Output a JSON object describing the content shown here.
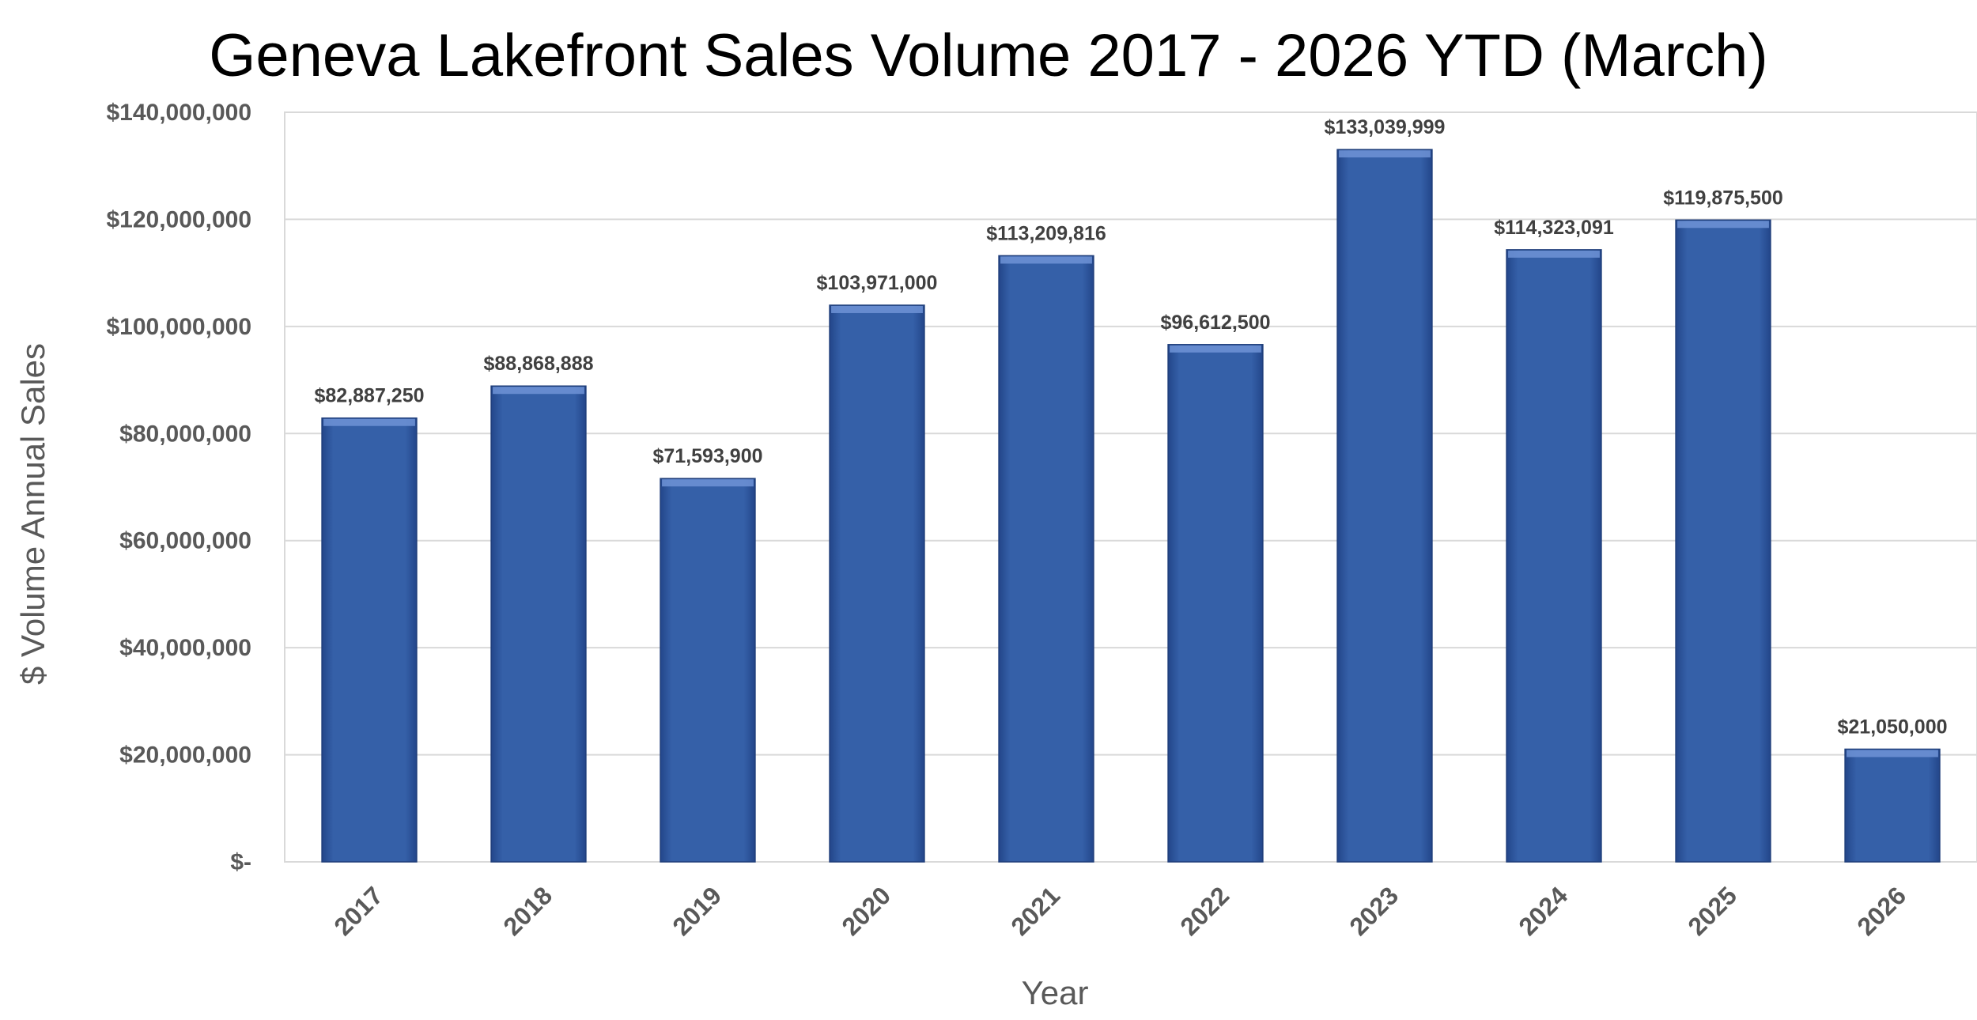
{
  "chart_data": {
    "type": "bar",
    "title": "Geneva Lakefront Sales Volume 2017 - 2026 YTD (March)",
    "xlabel": "Year",
    "ylabel": "$ Volume Annual Sales",
    "categories": [
      "2017",
      "2018",
      "2019",
      "2020",
      "2021",
      "2022",
      "2023",
      "2024",
      "2025",
      "2026"
    ],
    "values": [
      82887250,
      88868888,
      71593900,
      103971000,
      113209816,
      96612500,
      133039999,
      114323091,
      119875500,
      21050000
    ],
    "data_labels": [
      "$82,887,250",
      "$88,868,888",
      "$71,593,900",
      "$103,971,000",
      "$113,209,816",
      "$96,612,500",
      "$133,039,999",
      "$114,323,091",
      "$119,875,500",
      "$21,050,000"
    ],
    "y_ticks": [
      0,
      20000000,
      40000000,
      60000000,
      80000000,
      100000000,
      120000000,
      140000000
    ],
    "y_tick_labels": [
      "$-",
      "$20,000,000",
      "$40,000,000",
      "$60,000,000",
      "$80,000,000",
      "$100,000,000",
      "$120,000,000",
      "$140,000,000"
    ],
    "ylim": [
      0,
      140000000
    ],
    "grid": true,
    "legend": "none",
    "colors": {
      "bar": "#3560A8",
      "bar_highlight": "#6E93D6",
      "bar_shadow": "#1F3E7A",
      "gridline": "#D9D9D9",
      "axis_text": "#595959"
    }
  }
}
